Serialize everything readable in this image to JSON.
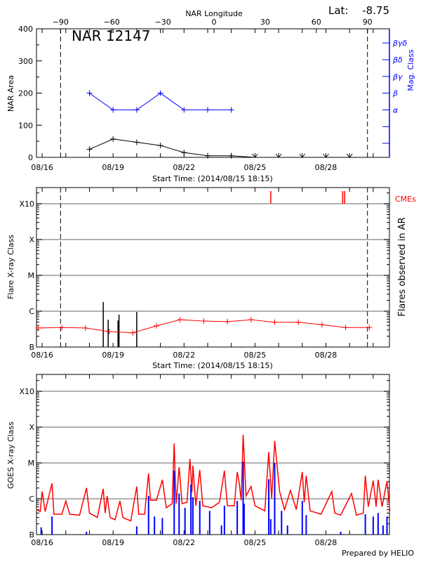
{
  "header": {
    "lat_label": "Lat:",
    "lat_value": "-8.75",
    "lon_axis_title": "NAR Longitude",
    "region": "NAR 12147"
  },
  "colors": {
    "mag_class": "#0000ff",
    "flare_background": "#ff0000",
    "cme": "#ff0000",
    "goes_red": "#ff0000",
    "goes_blue": "#0000ff",
    "grid": "#999999",
    "axis": "#000000"
  },
  "chart_data": [
    {
      "type": "line",
      "title": "NAR 12147",
      "xlabel": "Start Time: (2014/08/15 18:15)",
      "x_start": "08/15 18:15",
      "x_end": "08/30 18:15",
      "x_tick_labels": [
        "08/16",
        "08/19",
        "08/22",
        "08/25",
        "08/28"
      ],
      "top_axis": {
        "label": "NAR Longitude",
        "ticks": [
          -90,
          -60,
          -30,
          0,
          30,
          60,
          90
        ]
      },
      "limb_longitudes": [
        -90,
        90
      ],
      "ylabel": "NAR Area",
      "ylim": [
        0,
        400
      ],
      "yticks": [
        0,
        100,
        200,
        300,
        400
      ],
      "y2label": "Mag. Class",
      "y2_categories": [
        "",
        "",
        "α",
        "β",
        "βγ",
        "βδ",
        "βγδ"
      ],
      "series": [
        {
          "name": "NAR Area",
          "color": "#000000",
          "points": [
            [
              "08/18 00:00",
              25
            ],
            [
              "08/19 00:00",
              57
            ],
            [
              "08/20 00:00",
              47
            ],
            [
              "08/21 00:00",
              37
            ],
            [
              "08/22 00:00",
              15
            ],
            [
              "08/23 00:00",
              5
            ],
            [
              "08/24 00:00",
              5
            ],
            [
              "08/25 00:00",
              0
            ],
            [
              "08/26 00:00",
              0
            ],
            [
              "08/27 00:00",
              0
            ],
            [
              "08/28 00:00",
              0
            ],
            [
              "08/29 00:00",
              0
            ]
          ]
        },
        {
          "name": "Mag. Class",
          "color": "#0000ff",
          "points": [
            [
              "08/18 00:00",
              "β"
            ],
            [
              "08/19 00:00",
              "α"
            ],
            [
              "08/20 00:00",
              "α"
            ],
            [
              "08/21 00:00",
              "β"
            ],
            [
              "08/22 00:00",
              "α"
            ],
            [
              "08/23 00:00",
              "α"
            ],
            [
              "08/24 00:00",
              "α"
            ]
          ]
        }
      ]
    },
    {
      "type": "line",
      "xlabel": "Start Time: (2014/08/15 18:15)",
      "x_tick_labels": [
        "08/16",
        "08/19",
        "08/22",
        "08/25",
        "08/28"
      ],
      "ylabel": "Flare X-ray Class",
      "y2label": "Flares observed in AR",
      "y_class_ticks": [
        "B",
        "C",
        "M",
        "X",
        "X10"
      ],
      "ylim_flux": [
        1e-07,
        0.0028
      ],
      "grid": true,
      "limb_longitudes": [
        -90,
        90
      ],
      "background": [
        [
          "08/15 20:00",
          "B3.4"
        ],
        [
          "08/16 20:00",
          "B3.5"
        ],
        [
          "08/17 20:00",
          "B3.4"
        ],
        [
          "08/18 20:00",
          "B2.7"
        ],
        [
          "08/19 20:00",
          "B2.5"
        ],
        [
          "08/20 20:00",
          "B3.9"
        ],
        [
          "08/21 20:00",
          "B5.8"
        ],
        [
          "08/22 20:00",
          "B5.3"
        ],
        [
          "08/23 20:00",
          "B5.1"
        ],
        [
          "08/24 20:00",
          "B5.8"
        ],
        [
          "08/25 20:00",
          "B4.9"
        ],
        [
          "08/26 20:00",
          "B4.9"
        ],
        [
          "08/27 20:00",
          "B4.2"
        ],
        [
          "08/28 20:00",
          "B3.5"
        ],
        [
          "08/29 20:00",
          "B3.5"
        ]
      ],
      "flares": [
        [
          "08/18 14:00",
          "C1.8"
        ],
        [
          "08/18 19:00",
          "B5.8"
        ],
        [
          "08/19 05:00",
          "B5.5"
        ],
        [
          "08/19 06:00",
          "B8.0"
        ],
        [
          "08/20 00:00",
          "B9.5"
        ]
      ],
      "cme_label": "CMEs",
      "cmes": [
        "08/25 16:00",
        "08/28 17:00",
        "08/28 19:00"
      ]
    },
    {
      "type": "line",
      "x_tick_labels": [
        "08/16",
        "08/19",
        "08/22",
        "08/25",
        "08/28"
      ],
      "ylabel": "GOES X-ray Class",
      "y_class_ticks": [
        "B",
        "C",
        "M",
        "X",
        "X10"
      ],
      "ylim_flux": [
        1e-07,
        0.0028
      ],
      "grid": true,
      "series_red": [
        [
          "08/15 18:15",
          "B5.1"
        ],
        [
          "08/15 22:00",
          "B4.4"
        ],
        [
          "08/16 00:00",
          "C1.6"
        ],
        [
          "08/16 03:00",
          "B4.4"
        ],
        [
          "08/16 10:00",
          "C2.7"
        ],
        [
          "08/16 12:00",
          "B3.7"
        ],
        [
          "08/16 20:00",
          "B3.7"
        ],
        [
          "08/17 00:00",
          "B8.7"
        ],
        [
          "08/17 04:00",
          "B3.7"
        ],
        [
          "08/17 14:00",
          "B3.5"
        ],
        [
          "08/17 21:00",
          "C2.0"
        ],
        [
          "08/18 00:00",
          "B4.0"
        ],
        [
          "08/18 08:00",
          "B3.0"
        ],
        [
          "08/18 14:00",
          "C1.9"
        ],
        [
          "08/18 16:00",
          "B4.0"
        ],
        [
          "08/18 18:00",
          "C1.2"
        ],
        [
          "08/18 21:00",
          "B3.0"
        ],
        [
          "08/19 02:00",
          "B2.6"
        ],
        [
          "08/19 07:00",
          "B8.7"
        ],
        [
          "08/19 10:00",
          "B3.0"
        ],
        [
          "08/19 18:00",
          "B2.4"
        ],
        [
          "08/20 00:00",
          "C2.2"
        ],
        [
          "08/20 02:00",
          "B3.7"
        ],
        [
          "08/20 08:00",
          "B3.7"
        ],
        [
          "08/20 12:00",
          "C5.1"
        ],
        [
          "08/20 14:00",
          "B9.1"
        ],
        [
          "08/20 20:00",
          "B9.1"
        ],
        [
          "08/21 02:00",
          "C3.4"
        ],
        [
          "08/21 06:00",
          "B5.6"
        ],
        [
          "08/21 12:00",
          "B7.3"
        ],
        [
          "08/21 14:00",
          "M3.5"
        ],
        [
          "08/21 16:00",
          "B7.3"
        ],
        [
          "08/21 19:00",
          "C7.6"
        ],
        [
          "08/21 22:00",
          "B7.3"
        ],
        [
          "08/22 03:00",
          "B8.0"
        ],
        [
          "08/22 06:00",
          "M1.3"
        ],
        [
          "08/22 08:00",
          "C1.5"
        ],
        [
          "08/22 09:00",
          "C8.4"
        ],
        [
          "08/22 12:00",
          "B6.4"
        ],
        [
          "08/22 16:00",
          "C6.4"
        ],
        [
          "08/22 19:00",
          "B6.4"
        ],
        [
          "08/23 04:00",
          "B5.6"
        ],
        [
          "08/23 12:00",
          "B8.0"
        ],
        [
          "08/23 17:00",
          "C6.1"
        ],
        [
          "08/23 20:00",
          "B6.4"
        ],
        [
          "08/24 03:00",
          "B6.4"
        ],
        [
          "08/24 06:00",
          "C5.6"
        ],
        [
          "08/24 08:00",
          "C2.8"
        ],
        [
          "08/24 10:00",
          "B9.0"
        ],
        [
          "08/24 12:00",
          "M6.1"
        ],
        [
          "08/24 15:00",
          "C1.2"
        ],
        [
          "08/24 20:00",
          "C2.2"
        ],
        [
          "08/25 00:00",
          "B6.4"
        ],
        [
          "08/25 10:00",
          "B4.6"
        ],
        [
          "08/25 14:00",
          "M2.0"
        ],
        [
          "08/25 17:00",
          "C1.0"
        ],
        [
          "08/25 20:00",
          "M4.1"
        ],
        [
          "08/26 01:00",
          "C1.6"
        ],
        [
          "08/26 06:00",
          "B5.0"
        ],
        [
          "08/26 12:00",
          "C1.7"
        ],
        [
          "08/26 18:00",
          "B5.0"
        ],
        [
          "08/27 00:00",
          "C5.6"
        ],
        [
          "08/27 02:00",
          "B8.0"
        ],
        [
          "08/27 04:00",
          "C4.4"
        ],
        [
          "08/27 08:00",
          "B4.6"
        ],
        [
          "08/27 19:00",
          "B3.7"
        ],
        [
          "08/28 06:00",
          "C1.6"
        ],
        [
          "08/28 09:00",
          "B4.0"
        ],
        [
          "08/28 15:00",
          "B3.5"
        ],
        [
          "08/29 02:00",
          "C1.4"
        ],
        [
          "08/29 07:00",
          "B3.5"
        ],
        [
          "08/29 14:00",
          "B4.0"
        ],
        [
          "08/29 16:00",
          "C4.4"
        ],
        [
          "08/29 19:00",
          "B6.0"
        ],
        [
          "08/30 00:00",
          "C3.2"
        ],
        [
          "08/30 03:00",
          "B6.0"
        ],
        [
          "08/30 05:00",
          "C3.4"
        ],
        [
          "08/30 09:00",
          "B6.0"
        ],
        [
          "08/30 14:00",
          "C3.1"
        ],
        [
          "08/30 17:00",
          "B4.6"
        ]
      ],
      "series_blue": [
        [
          "08/15 23:00",
          "B1.6"
        ],
        [
          "08/16 10:00",
          "B3.2"
        ],
        [
          "08/17 21:00",
          "B1.2"
        ],
        [
          "08/20 00:00",
          "B1.7"
        ],
        [
          "08/20 12:00",
          "C1.2"
        ],
        [
          "08/20 18:00",
          "B3.2"
        ],
        [
          "08/21 02:00",
          "B2.9"
        ],
        [
          "08/21 14:00",
          "C6.1"
        ],
        [
          "08/21 19:00",
          "C1.4"
        ],
        [
          "08/22 01:00",
          "B5.6"
        ],
        [
          "08/22 07:00",
          "C2.5"
        ],
        [
          "08/22 09:00",
          "C1.1"
        ],
        [
          "08/22 16:00",
          "B8.7"
        ],
        [
          "08/23 02:00",
          "B4.6"
        ],
        [
          "08/23 14:00",
          "B1.8"
        ],
        [
          "08/23 17:00",
          "B6.4"
        ],
        [
          "08/24 06:00",
          "B8.7"
        ],
        [
          "08/24 12:00",
          "M1.1"
        ],
        [
          "08/24 13:00",
          "B7.3"
        ],
        [
          "08/25 14:00",
          "C3.5"
        ],
        [
          "08/25 16:00",
          "B2.7"
        ],
        [
          "08/25 20:00",
          "M1.0"
        ],
        [
          "08/26 03:00",
          "B4.6"
        ],
        [
          "08/26 09:00",
          "B1.8"
        ],
        [
          "08/27 00:00",
          "B8.7"
        ],
        [
          "08/27 04:00",
          "B3.5"
        ],
        [
          "08/28 15:00",
          "B1.2"
        ],
        [
          "08/29 16:00",
          "B3.7"
        ],
        [
          "08/30 00:00",
          "B3.2"
        ],
        [
          "08/30 05:00",
          "B4.0"
        ],
        [
          "08/30 10:00",
          "B1.8"
        ],
        [
          "08/30 14:00",
          "B3.2"
        ]
      ]
    }
  ],
  "footer": "Prepared by HELIO"
}
